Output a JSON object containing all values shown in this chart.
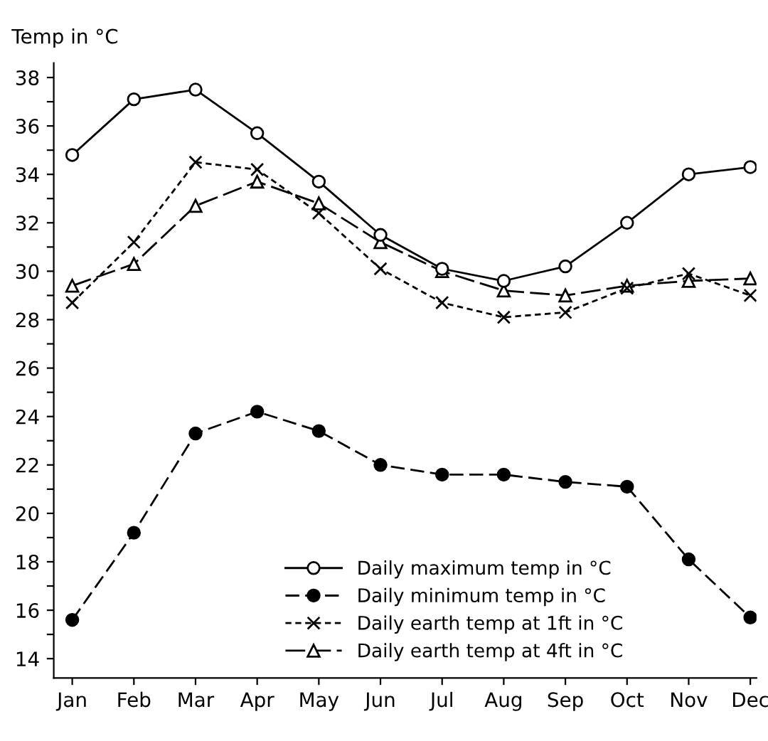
{
  "chart_data": {
    "type": "line",
    "ylabel": "Temp in °C",
    "categories": [
      "Jan",
      "Feb",
      "Mar",
      "Apr",
      "May",
      "Jun",
      "Jul",
      "Aug",
      "Sep",
      "Oct",
      "Nov",
      "Dec"
    ],
    "ylim": [
      13.2,
      38.6
    ],
    "yticks": [
      14,
      {
        "value": 15,
        "label": null
      },
      16,
      {
        "value": 17,
        "label": null
      },
      18,
      {
        "value": 19,
        "label": null
      },
      20,
      {
        "value": 21,
        "label": null
      },
      22,
      {
        "value": 23,
        "label": null
      },
      24,
      {
        "value": 25,
        "label": null
      },
      26,
      {
        "value": 27,
        "label": null
      },
      28,
      {
        "value": 29,
        "label": null
      },
      30,
      {
        "value": 31,
        "label": null
      },
      32,
      {
        "value": 33,
        "label": null
      },
      34,
      {
        "value": 35,
        "label": null
      },
      36,
      {
        "value": 37,
        "label": null
      },
      38
    ],
    "grid": false,
    "legend": "bottom",
    "series": [
      {
        "name": "Daily maximum temp in °C",
        "color": "#000000",
        "marker": "circle",
        "line_style": "solid",
        "values": [
          34.8,
          37.1,
          37.5,
          35.7,
          33.7,
          31.5,
          30.1,
          29.6,
          30.2,
          32.0,
          34.0,
          34.3
        ]
      },
      {
        "name": "Daily minimum temp in °C",
        "color": "#000000",
        "marker": "circle",
        "line_style": "dashed",
        "values": [
          15.6,
          19.2,
          23.3,
          24.2,
          23.4,
          22.0,
          21.6,
          21.6,
          21.3,
          21.1,
          18.1,
          15.7
        ]
      },
      {
        "name": "Daily earth temp at 1ft in °C",
        "color": "#000000",
        "marker": "cross",
        "line_style": "dotted",
        "values": [
          28.7,
          31.2,
          34.5,
          34.2,
          32.4,
          30.1,
          28.7,
          28.1,
          28.3,
          29.3,
          29.9,
          29.0
        ]
      },
      {
        "name": "Daily earth temp at 4ft in °C",
        "color": "#000000",
        "marker": "triangle",
        "line_style": "dashdot",
        "values": [
          29.4,
          30.3,
          32.7,
          33.7,
          32.8,
          31.2,
          30.0,
          29.2,
          29.0,
          29.4,
          29.6,
          29.7
        ]
      }
    ]
  }
}
